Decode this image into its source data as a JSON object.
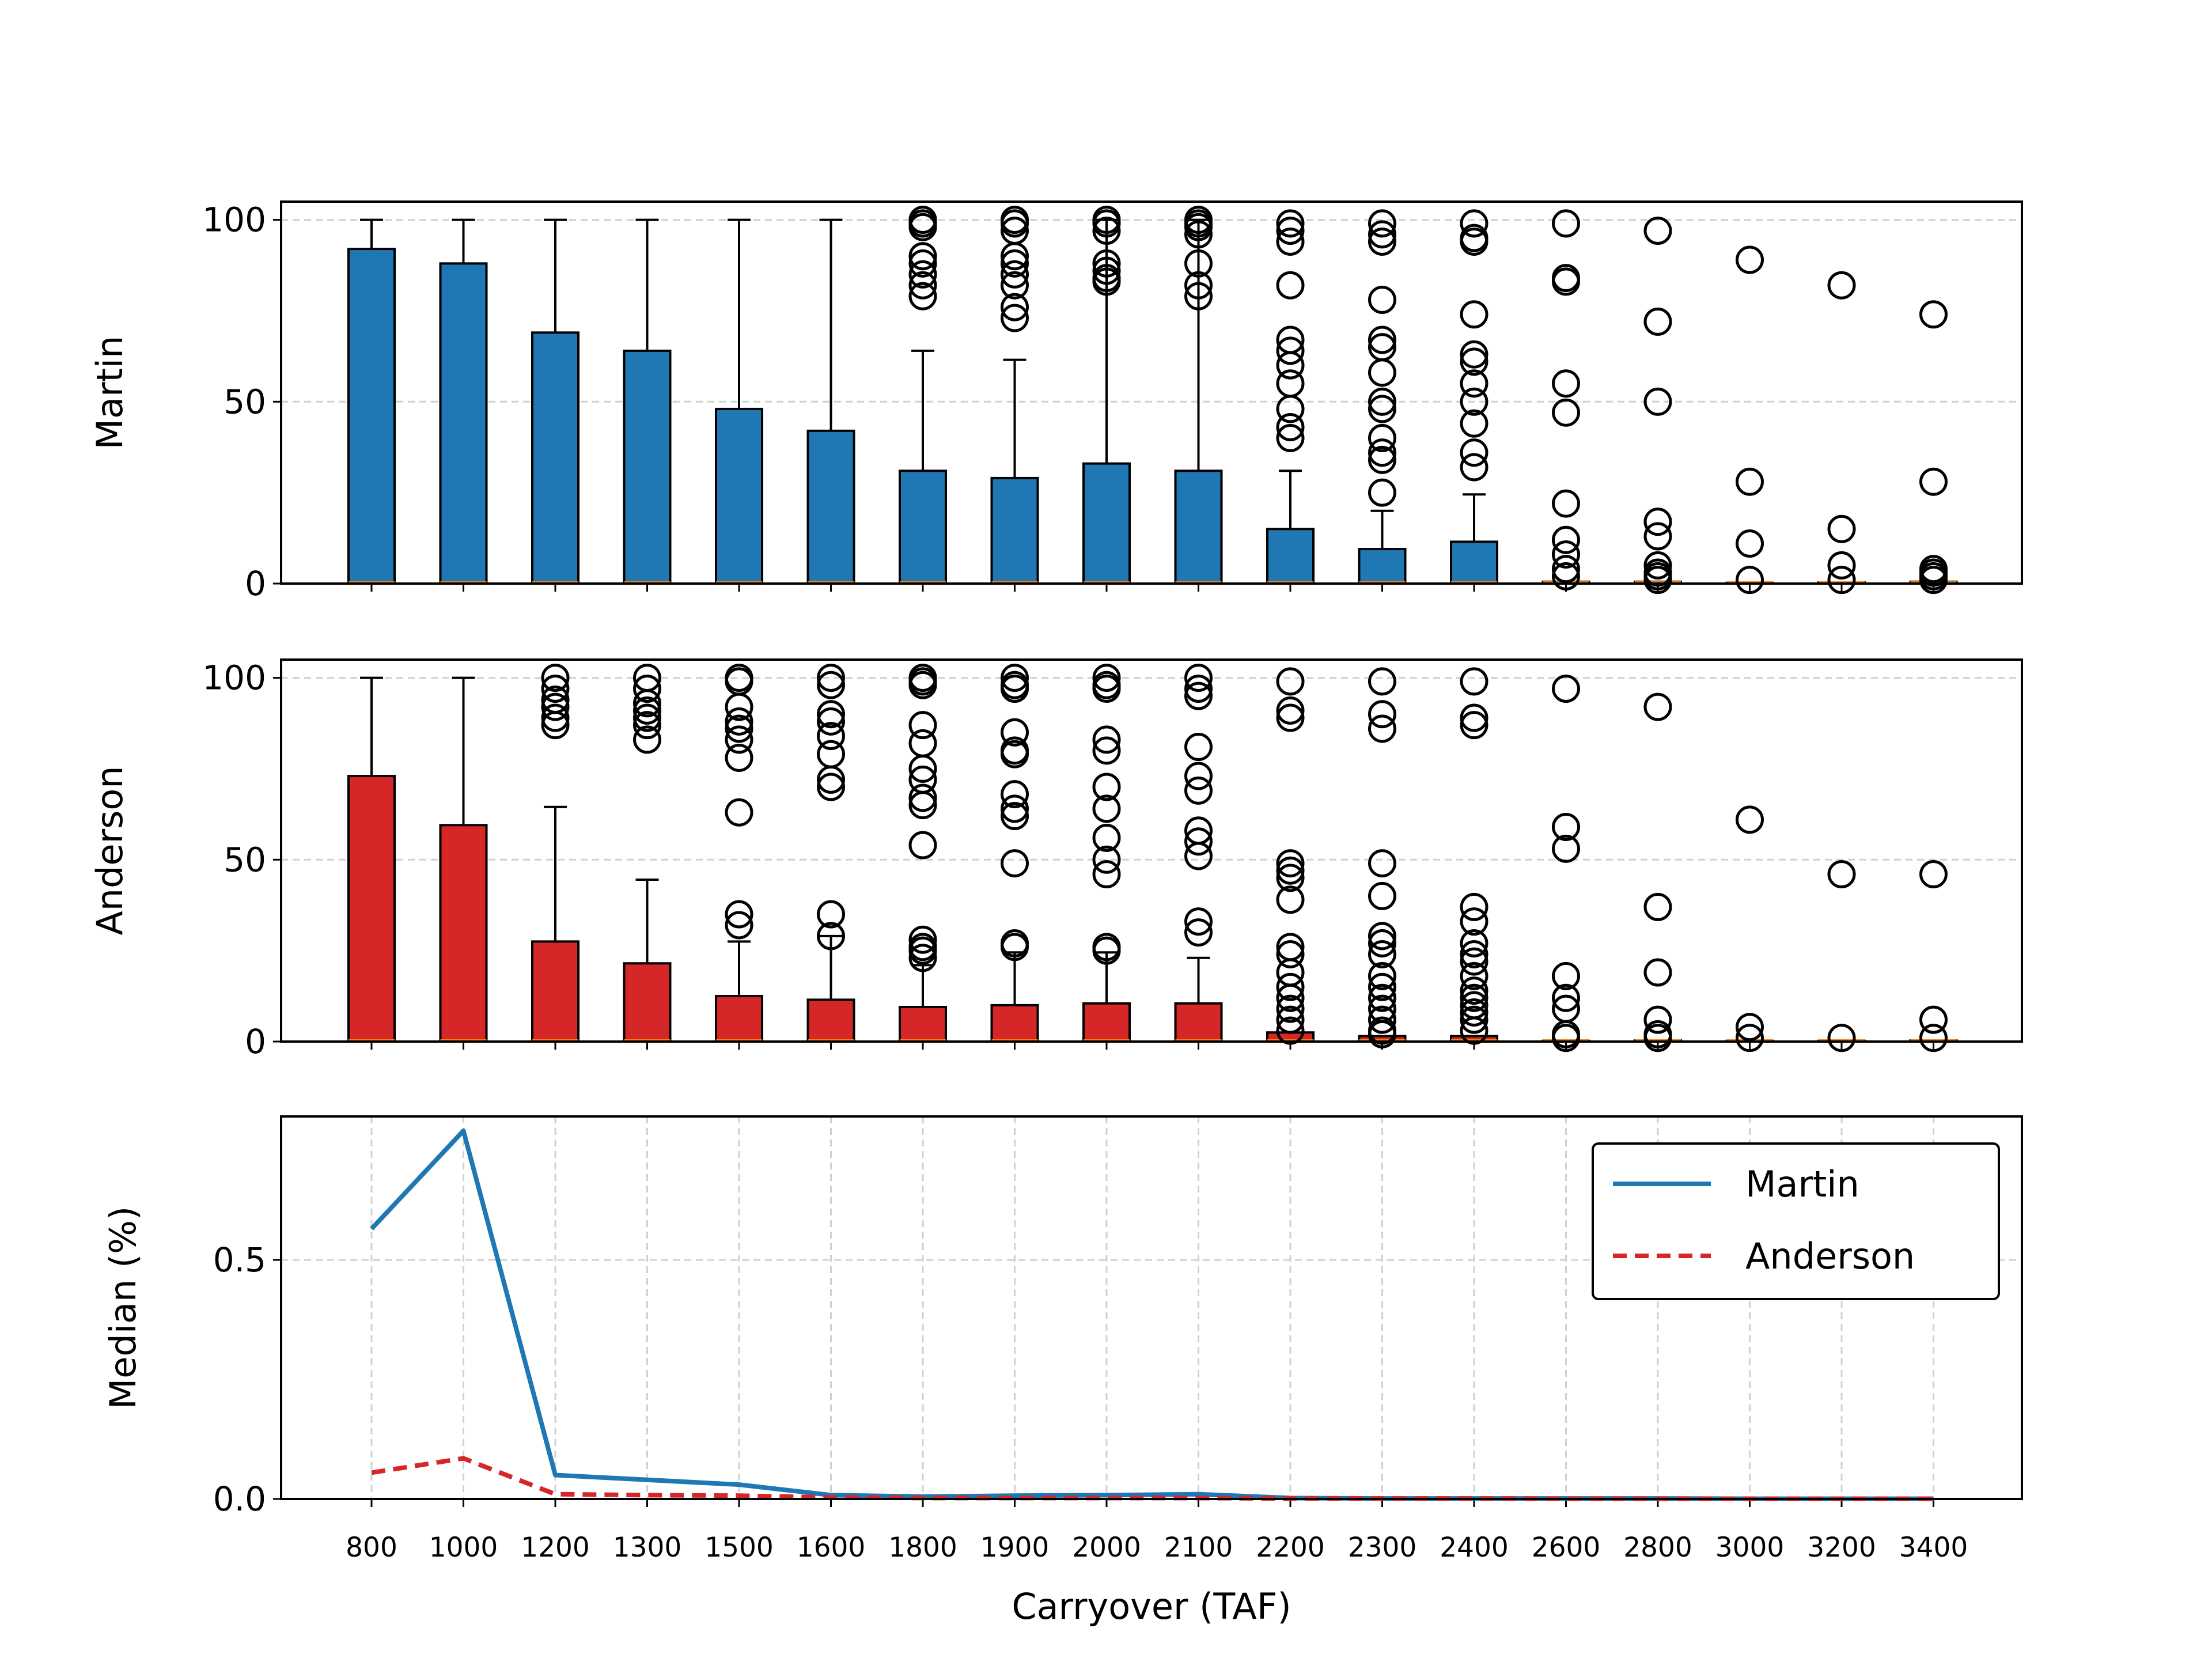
{
  "colors": {
    "martin": "#1f77b4",
    "anderson": "#d62728",
    "median_line": "#ff7f0e",
    "grid": "#d0d0d0"
  },
  "chart_data": [
    {
      "type": "bar",
      "panel": "Martin",
      "ylabel": "Martin",
      "ylim": [
        0,
        105
      ],
      "yticks": [
        0,
        50,
        100
      ],
      "grid": true,
      "categories": [
        "800",
        "1000",
        "1200",
        "1300",
        "1500",
        "1600",
        "1800",
        "1900",
        "2000",
        "2100",
        "2200",
        "2300",
        "2400",
        "2600",
        "2800",
        "3000",
        "3200",
        "3400"
      ],
      "values": [
        92,
        88,
        69,
        64,
        48,
        42,
        31,
        29,
        33,
        31,
        15,
        9.5,
        11.5,
        0.5,
        0.5,
        0.2,
        0.3,
        0.5
      ],
      "whisker_high": [
        100,
        100,
        100,
        100,
        100,
        100,
        64,
        61.5,
        100,
        100,
        31,
        20,
        24.5,
        0,
        0,
        0,
        0,
        0
      ],
      "outliers": [
        [],
        [],
        [],
        [],
        [],
        [],
        [
          100,
          99,
          98,
          90,
          88,
          85,
          82,
          79
        ],
        [
          100,
          99,
          97,
          90,
          88,
          85,
          82,
          76,
          73
        ],
        [
          100,
          99,
          97,
          88,
          86,
          84,
          83
        ],
        [
          100,
          99,
          98,
          96,
          88,
          82,
          79
        ],
        [
          99,
          97,
          94,
          82,
          67,
          64,
          60,
          55,
          48,
          43,
          40
        ],
        [
          99,
          96,
          94,
          78,
          67,
          65,
          58,
          50,
          48,
          40,
          36,
          34,
          25
        ],
        [
          99,
          95,
          94,
          74,
          63,
          61,
          55,
          50,
          44,
          36,
          32
        ],
        [
          99,
          84,
          83,
          55,
          47,
          22,
          12,
          8,
          4,
          2
        ],
        [
          97,
          72,
          50,
          17,
          13,
          5,
          3,
          2,
          1
        ],
        [
          89,
          28,
          11,
          1
        ],
        [
          82,
          15,
          5,
          1
        ],
        [
          74,
          28,
          4,
          3,
          2,
          1
        ]
      ]
    },
    {
      "type": "bar",
      "panel": "Anderson",
      "ylabel": "Anderson",
      "ylim": [
        0,
        105
      ],
      "yticks": [
        0,
        50,
        100
      ],
      "grid": true,
      "categories": [
        "800",
        "1000",
        "1200",
        "1300",
        "1500",
        "1600",
        "1800",
        "1900",
        "2000",
        "2100",
        "2200",
        "2300",
        "2400",
        "2600",
        "2800",
        "3000",
        "3200",
        "3400"
      ],
      "values": [
        73,
        59.5,
        27.5,
        21.5,
        12.5,
        11.5,
        9.5,
        10,
        10.5,
        10.5,
        2.5,
        1.5,
        1.5,
        0.2,
        0.3,
        0.2,
        0.2,
        0.3
      ],
      "whisker_high": [
        100,
        100,
        64.5,
        44.5,
        27.5,
        29,
        21,
        24.5,
        24.5,
        23,
        0,
        0,
        0,
        0,
        0,
        0,
        0,
        0
      ],
      "outliers": [
        [],
        [],
        [
          100,
          97,
          94,
          92,
          89,
          87
        ],
        [
          100,
          97,
          93,
          91,
          89,
          87,
          83
        ],
        [
          100,
          99,
          92,
          88,
          86,
          83,
          78,
          63,
          35,
          32
        ],
        [
          100,
          98,
          90,
          88,
          84,
          79,
          72,
          70,
          35,
          29
        ],
        [
          100,
          99,
          98,
          87,
          82,
          75,
          72,
          67,
          65,
          54,
          28,
          26,
          25,
          23
        ],
        [
          100,
          98,
          97,
          85,
          80,
          79,
          68,
          64,
          62,
          49,
          27,
          26
        ],
        [
          100,
          98,
          97,
          83,
          80,
          70,
          64,
          56,
          50,
          46,
          26,
          25
        ],
        [
          100,
          97,
          95,
          81,
          73,
          69,
          58,
          55,
          51,
          33,
          30
        ],
        [
          99,
          91,
          89,
          49,
          47,
          45,
          39,
          26,
          24,
          19,
          15,
          12,
          9,
          6,
          3
        ],
        [
          99,
          90,
          86,
          49,
          40,
          29,
          27,
          24,
          18,
          15,
          12,
          9,
          6,
          3,
          2
        ],
        [
          99,
          89,
          87,
          37,
          33,
          27,
          24,
          22,
          18,
          14,
          12,
          10,
          8,
          6,
          3
        ],
        [
          97,
          59,
          53,
          18,
          12,
          9,
          2,
          1
        ],
        [
          92,
          37,
          19,
          6,
          2,
          1
        ],
        [
          61,
          4,
          1
        ],
        [
          46,
          1
        ],
        [
          46,
          6,
          1
        ]
      ]
    },
    {
      "type": "line",
      "panel": "Median",
      "ylabel": "Median (%)",
      "xlabel": "Carryover (TAF)",
      "ylim": [
        0,
        0.8
      ],
      "yticks": [
        "0.0",
        "0.5"
      ],
      "grid": true,
      "legend_position": "top-right",
      "categories": [
        "800",
        "1000",
        "1200",
        "1300",
        "1500",
        "1600",
        "1800",
        "1900",
        "2000",
        "2100",
        "2200",
        "2300",
        "2400",
        "2600",
        "2800",
        "3000",
        "3200",
        "3400"
      ],
      "series": [
        {
          "name": "Martin",
          "style": "solid",
          "values": [
            0.565,
            0.77,
            0.05,
            0.04,
            0.03,
            0.008,
            0.005,
            0.007,
            0.008,
            0.01,
            0.002,
            0.001,
            0.001,
            0.001,
            0.001,
            0.0005,
            0.0005,
            0.0005
          ]
        },
        {
          "name": "Anderson",
          "style": "dashed",
          "values": [
            0.055,
            0.085,
            0.01,
            0.008,
            0.007,
            0.003,
            0.002,
            0.002,
            0.002,
            0.002,
            0.001,
            0.001,
            0.001,
            0.0005,
            0.0005,
            0.0005,
            0.0005,
            0.0005
          ]
        }
      ]
    }
  ]
}
